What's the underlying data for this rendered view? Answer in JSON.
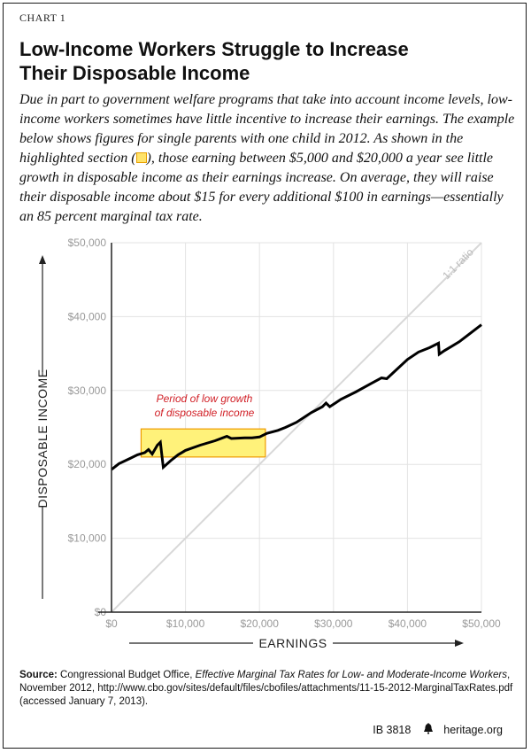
{
  "header": {
    "label": "CHART 1",
    "title_line1": "Low-Income Workers Struggle to Increase",
    "title_line2": "Their Disposable Income",
    "subtitle_part1": "Due in part to government welfare programs that take into account income levels, low-income workers sometimes have little incentive to increase their earnings. The example below shows figures for single parents with one child in 2012. As shown in the highlighted section (",
    "subtitle_part2": "), those earning between $5,000 and $20,000 a year see little growth in disposable income as their earnings increase. On average, they will raise their disposable income about $15 for every additional $100 in earnings—essentially an 85 percent marginal tax rate."
  },
  "chart_data": {
    "type": "line",
    "xlabel": "EARNINGS",
    "ylabel": "DISPOSABLE INCOME",
    "xlim": [
      0,
      50000
    ],
    "ylim": [
      0,
      50000
    ],
    "x_ticks": [
      0,
      10000,
      20000,
      30000,
      40000,
      50000
    ],
    "x_tick_labels": [
      "$0",
      "$10,000",
      "$20,000",
      "$30,000",
      "$40,000",
      "$50,000"
    ],
    "y_ticks": [
      0,
      10000,
      20000,
      30000,
      40000,
      50000
    ],
    "y_tick_labels": [
      "$0",
      "$10,000",
      "$20,000",
      "$30,000",
      "$40,000",
      "$50,000"
    ],
    "grid": true,
    "series": [
      {
        "x": [
          0,
          1000,
          2500,
          3500,
          4500,
          5000,
          5500,
          6200,
          6600,
          7000,
          8000,
          9000,
          10000,
          12000,
          14000,
          15600,
          16200,
          18000,
          19000,
          20000,
          21000,
          22500,
          23500,
          25000,
          27000,
          28500,
          29000,
          29500,
          31000,
          33000,
          35000,
          36500,
          37200,
          38500,
          40000,
          41500,
          43000,
          44200,
          44300,
          45000,
          47000,
          50000
        ],
        "y": [
          19300,
          20100,
          20800,
          21300,
          21600,
          22000,
          21400,
          22600,
          23000,
          19600,
          20500,
          21300,
          21900,
          22600,
          23200,
          23800,
          23500,
          23600,
          23600,
          23700,
          24200,
          24600,
          25000,
          25700,
          27000,
          27800,
          28300,
          27800,
          28800,
          29800,
          30900,
          31700,
          31600,
          32800,
          34200,
          35200,
          35800,
          36400,
          34900,
          35400,
          36600,
          38900
        ]
      },
      {
        "name": "1:1 ratio",
        "x": [
          0,
          50000
        ],
        "y": [
          0,
          50000
        ]
      }
    ],
    "annotations": [
      {
        "text_line1": "Period of low growth",
        "text_line2": "of disposable income"
      }
    ],
    "highlight": {
      "x_range": [
        4000,
        20800
      ],
      "y_range": [
        21000,
        24800
      ]
    },
    "colors": {
      "line": "#000000",
      "ratio_line": "#d8d8d8",
      "grid": "#e3e3e3",
      "highlight_fill": "#fff27a",
      "highlight_stroke": "#ee9a00",
      "annotation": "#d11f26",
      "axis_text": "#999999",
      "axis_title": "#222222"
    }
  },
  "source": {
    "label": "Source:",
    "text1": " Congressional Budget Office, ",
    "italic": "Effective Marginal Tax Rates for Low- and Moderate-Income Workers",
    "text2": ", November 2012, http://www.cbo.gov/sites/default/files/cbofiles/attachments/11-15-2012-MarginalTaxRates.pdf (accessed January 7, 2013)."
  },
  "footer": {
    "code": "IB 3818",
    "logo_icon": "liberty-bell-icon",
    "site": "heritage.org"
  }
}
